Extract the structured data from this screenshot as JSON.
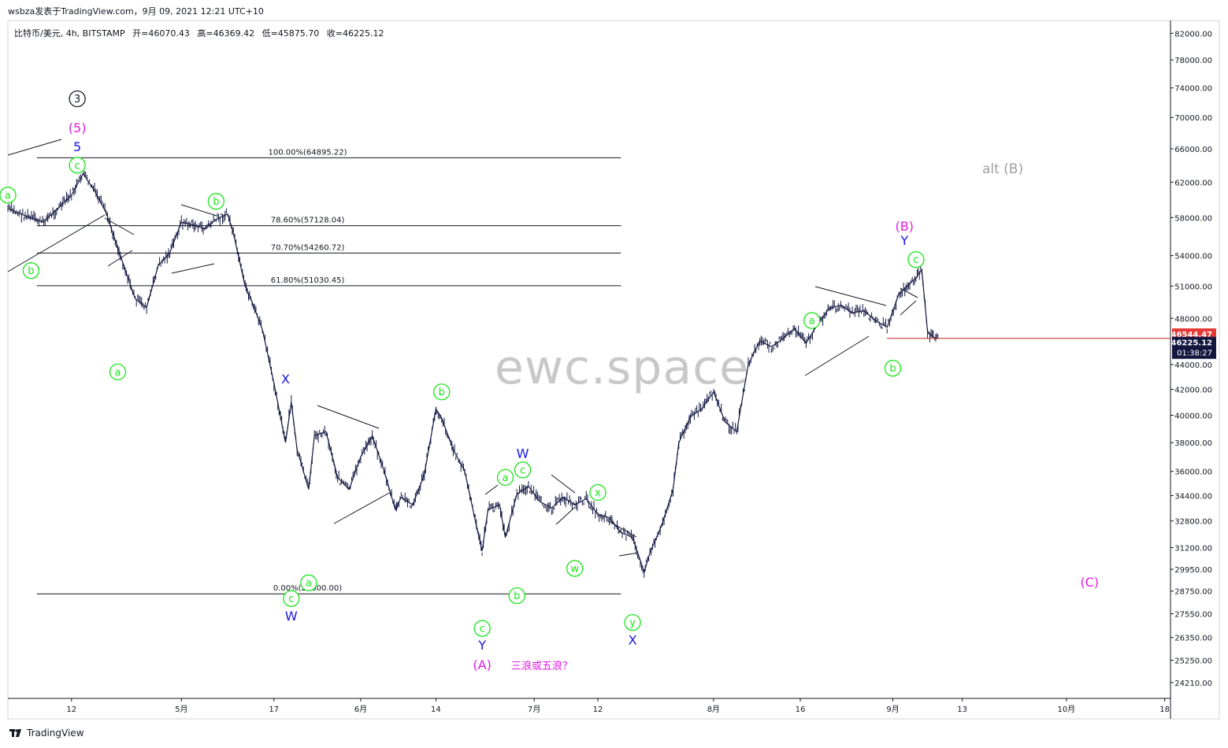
{
  "header": {
    "publisher": "wsbza发表于TradingView.com，9月 09, 2021 12:21 UTC+10"
  },
  "symbol_info": {
    "name": "比特币/美元, 4h, BITSTAMP",
    "open": "开=46070.43",
    "high": "高=46369.42",
    "low": "低=45875.70",
    "close": "收=46225.12"
  },
  "watermark": "ewc.space",
  "footer": {
    "brand": "TradingView"
  },
  "colors": {
    "green": "#19e619",
    "blue": "#1515e6",
    "magenta": "#e619e6",
    "gray": "#9e9e9e",
    "candles": "#131740",
    "price_line": "#cc2222"
  },
  "chart_data": {
    "type": "line",
    "y_scale": "log",
    "ylim": [
      23500,
      84000
    ],
    "y_ticks": [
      82000,
      78000,
      74000,
      70000,
      66000,
      62000,
      58000,
      54000,
      51000,
      48000,
      44000,
      42000,
      40000,
      38000,
      36000,
      34400,
      32800,
      31200,
      29950,
      28750,
      27550,
      26350,
      25250,
      24210
    ],
    "y_tick_labels": [
      "82000.00",
      "78000.00",
      "74000.00",
      "70000.00",
      "66000.00",
      "62000.00",
      "58000.00",
      "54000.00",
      "51000.00",
      "48000.00",
      "44000.00",
      "42000.00",
      "40000.00",
      "38000.00",
      "36000.00",
      "34400.00",
      "32800.00",
      "31200.00",
      "29950.00",
      "28750.00",
      "27550.00",
      "26350.00",
      "25250.00",
      "24210.00"
    ],
    "x_ticks": [
      "2021-04-12",
      "2021-05-01",
      "2021-05-17",
      "2021-06-01",
      "2021-06-14",
      "2021-07-01",
      "2021-07-12",
      "2021-08-01",
      "2021-08-16",
      "2021-09-01",
      "2021-09-13",
      "2021-10-01",
      "2021-10-18"
    ],
    "x_tick_labels": [
      "12",
      "5月",
      "17",
      "6月",
      "14",
      "7月",
      "12",
      "8月",
      "16",
      "9月",
      "13",
      "10月",
      "18"
    ],
    "xlim": [
      "2021-04-01",
      "2021-10-19"
    ],
    "series": [
      {
        "x": [
          "2021-04-01",
          "2021-04-04",
          "2021-04-07",
          "2021-04-09",
          "2021-04-12",
          "2021-04-14",
          "2021-04-16",
          "2021-04-18",
          "2021-04-20",
          "2021-04-23",
          "2021-04-25",
          "2021-04-27",
          "2021-04-29",
          "2021-05-01",
          "2021-05-03",
          "2021-05-05",
          "2021-05-07",
          "2021-05-09",
          "2021-05-10",
          "2021-05-12",
          "2021-05-13",
          "2021-05-15",
          "2021-05-17",
          "2021-05-19",
          "2021-05-20",
          "2021-05-21",
          "2021-05-23",
          "2021-05-24",
          "2021-05-26",
          "2021-05-28",
          "2021-05-30",
          "2021-06-01",
          "2021-06-03",
          "2021-06-05",
          "2021-06-07",
          "2021-06-08",
          "2021-06-10",
          "2021-06-12",
          "2021-06-14",
          "2021-06-15",
          "2021-06-17",
          "2021-06-19",
          "2021-06-21",
          "2021-06-22",
          "2021-06-23",
          "2021-06-25",
          "2021-06-26",
          "2021-06-28",
          "2021-06-30",
          "2021-07-02",
          "2021-07-04",
          "2021-07-06",
          "2021-07-08",
          "2021-07-10",
          "2021-07-12",
          "2021-07-14",
          "2021-07-16",
          "2021-07-18",
          "2021-07-20",
          "2021-07-21",
          "2021-07-23",
          "2021-07-25",
          "2021-07-26",
          "2021-07-28",
          "2021-07-30",
          "2021-08-01",
          "2021-08-03",
          "2021-08-05",
          "2021-08-07",
          "2021-08-09",
          "2021-08-11",
          "2021-08-13",
          "2021-08-15",
          "2021-08-17",
          "2021-08-19",
          "2021-08-21",
          "2021-08-23",
          "2021-08-25",
          "2021-08-27",
          "2021-08-29",
          "2021-08-31",
          "2021-09-02",
          "2021-09-05",
          "2021-09-06",
          "2021-09-07",
          "2021-09-08",
          "2021-09-09"
        ],
        "values": [
          59000,
          58200,
          57500,
          58600,
          60500,
          63000,
          61000,
          58500,
          54800,
          49800,
          49000,
          53000,
          54300,
          57500,
          57200,
          56800,
          57800,
          58400,
          56300,
          51000,
          49800,
          47000,
          42500,
          38000,
          41000,
          37500,
          34800,
          38500,
          38800,
          35600,
          34800,
          37000,
          38500,
          36100,
          33500,
          34300,
          33800,
          35800,
          40500,
          39800,
          37500,
          36000,
          32500,
          31000,
          33500,
          33800,
          31800,
          34500,
          35000,
          34000,
          33600,
          34300,
          33800,
          34200,
          33200,
          33000,
          32100,
          31800,
          29800,
          30900,
          32500,
          34800,
          38000,
          39900,
          40500,
          41800,
          39500,
          38800,
          44000,
          46000,
          45500,
          46200,
          47100,
          45800,
          47500,
          48900,
          49200,
          48500,
          48700,
          47800,
          47200,
          50200,
          51800,
          52600,
          46800,
          46300,
          46225
        ]
      }
    ],
    "fib_levels": [
      {
        "label": "100.00%(64895.22)",
        "value": 64895.22
      },
      {
        "label": "78.60%(57128.04)",
        "value": 57128.04
      },
      {
        "label": "70.70%(54260.72)",
        "value": 54260.72
      },
      {
        "label": "61.80%(51030.45)",
        "value": 51030.45
      },
      {
        "label": "0.00%(28600.00)",
        "value": 28600.0
      }
    ],
    "price_labels": {
      "last": "46544.47",
      "current": "46225.12",
      "countdown": "01:38:27"
    },
    "annotations": [
      {
        "text": "3",
        "circled": true,
        "color": "black",
        "x": "2021-04-13",
        "y": 72500
      },
      {
        "text": "(5)",
        "color": "magenta",
        "x": "2021-04-13",
        "y": 68600
      },
      {
        "text": "5",
        "color": "blue",
        "x": "2021-04-13",
        "y": 66200
      },
      {
        "text": "c",
        "circled": true,
        "color": "green",
        "x": "2021-04-13",
        "y": 64000
      },
      {
        "text": "a",
        "circled": true,
        "color": "green",
        "x": "2021-04-01",
        "y": 60500
      },
      {
        "text": "b",
        "circled": true,
        "color": "green",
        "x": "2021-04-05",
        "y": 52500
      },
      {
        "text": "a",
        "circled": true,
        "color": "green",
        "x": "2021-04-20",
        "y": 43400
      },
      {
        "text": "b",
        "circled": true,
        "color": "green",
        "x": "2021-05-07",
        "y": 59800
      },
      {
        "text": "X",
        "color": "blue",
        "x": "2021-05-19",
        "y": 42800
      },
      {
        "text": "c",
        "circled": true,
        "color": "green",
        "x": "2021-05-20",
        "y": 28350
      },
      {
        "text": "W",
        "color": "blue",
        "x": "2021-05-20",
        "y": 27400
      },
      {
        "text": "a",
        "circled": true,
        "color": "green",
        "x": "2021-05-23",
        "y": 29200
      },
      {
        "text": "b",
        "circled": true,
        "color": "green",
        "x": "2021-06-15",
        "y": 41800
      },
      {
        "text": "W",
        "color": "blue",
        "x": "2021-06-29",
        "y": 37200
      },
      {
        "text": "c",
        "circled": true,
        "color": "green",
        "x": "2021-06-29",
        "y": 36100
      },
      {
        "text": "a",
        "circled": true,
        "color": "green",
        "x": "2021-06-26",
        "y": 35600
      },
      {
        "text": "b",
        "circled": true,
        "color": "green",
        "x": "2021-06-28",
        "y": 28500
      },
      {
        "text": "c",
        "circled": true,
        "color": "green",
        "x": "2021-06-22",
        "y": 26800
      },
      {
        "text": "Y",
        "color": "blue",
        "x": "2021-06-22",
        "y": 25950
      },
      {
        "text": "(A)",
        "color": "magenta",
        "x": "2021-06-22",
        "y": 25000
      },
      {
        "text": "三浪或五浪？",
        "color": "magenta",
        "x": "2021-06-27",
        "y": 25000
      },
      {
        "text": "x",
        "circled": true,
        "color": "green",
        "x": "2021-07-12",
        "y": 34600
      },
      {
        "text": "w",
        "circled": true,
        "color": "green",
        "x": "2021-07-08",
        "y": 30000
      },
      {
        "text": "y",
        "circled": true,
        "color": "green",
        "x": "2021-07-18",
        "y": 27100
      },
      {
        "text": "X",
        "color": "blue",
        "x": "2021-07-18",
        "y": 26200
      },
      {
        "text": "a",
        "circled": true,
        "color": "green",
        "x": "2021-08-18",
        "y": 47800
      },
      {
        "text": "b",
        "circled": true,
        "color": "green",
        "x": "2021-09-01",
        "y": 43700
      },
      {
        "text": "(B)",
        "color": "magenta",
        "x": "2021-09-03",
        "y": 57000
      },
      {
        "text": "Y",
        "color": "blue",
        "x": "2021-09-03",
        "y": 55500
      },
      {
        "text": "c",
        "circled": true,
        "color": "green",
        "x": "2021-09-05",
        "y": 53600
      },
      {
        "text": "alt (B)",
        "color": "gray",
        "x": "2021-09-20",
        "y": 63500
      },
      {
        "text": "(C)",
        "color": "magenta",
        "x": "2021-10-05",
        "y": 29200
      }
    ]
  }
}
